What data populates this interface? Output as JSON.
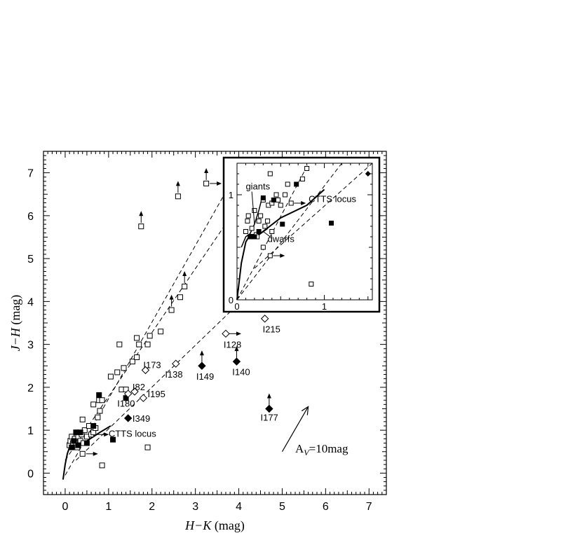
{
  "chart_data": {
    "type": "scatter",
    "xlabel": {
      "italic": "H−K",
      "rest": " (mag)"
    },
    "ylabel": {
      "italic": "J−H",
      "rest": "  (mag)"
    },
    "xlim": [
      -0.5,
      7.4
    ],
    "ylim": [
      -0.5,
      7.5
    ],
    "xticks": [
      "0",
      "1",
      "2",
      "3",
      "4",
      "5",
      "6",
      "7"
    ],
    "yticks": [
      "0",
      "1",
      "2",
      "3",
      "4",
      "5",
      "6",
      "7"
    ],
    "grid": false,
    "open_squares": [
      [
        0.1,
        0.65
      ],
      [
        0.12,
        0.75
      ],
      [
        0.15,
        0.85
      ],
      [
        0.18,
        0.7
      ],
      [
        0.22,
        0.8
      ],
      [
        0.25,
        0.65
      ],
      [
        0.28,
        0.6
      ],
      [
        0.3,
        0.85
      ],
      [
        0.35,
        0.75
      ],
      [
        0.38,
        0.9
      ],
      [
        0.4,
        0.45
      ],
      [
        0.42,
        0.7
      ],
      [
        0.45,
        1.0
      ],
      [
        0.5,
        0.85
      ],
      [
        0.55,
        1.1
      ],
      [
        0.6,
        0.9
      ],
      [
        0.65,
        0.95
      ],
      [
        0.7,
        1.05
      ],
      [
        0.75,
        1.3
      ],
      [
        0.8,
        1.45
      ],
      [
        0.78,
        1.7
      ],
      [
        0.85,
        1.7
      ],
      [
        0.4,
        1.25
      ],
      [
        0.65,
        1.6
      ],
      [
        1.05,
        2.25
      ],
      [
        1.2,
        2.35
      ],
      [
        1.3,
        1.95
      ],
      [
        1.35,
        2.45
      ],
      [
        1.4,
        1.95
      ],
      [
        1.55,
        2.6
      ],
      [
        1.65,
        2.7
      ],
      [
        1.7,
        3.0
      ],
      [
        1.65,
        3.15
      ],
      [
        1.25,
        3.0
      ],
      [
        1.9,
        3.0
      ],
      [
        1.95,
        3.2
      ],
      [
        2.2,
        3.3
      ],
      [
        2.45,
        3.8
      ],
      [
        2.65,
        4.1
      ],
      [
        2.75,
        4.35
      ],
      [
        1.75,
        5.75
      ],
      [
        2.6,
        6.45
      ],
      [
        3.25,
        6.75
      ],
      [
        1.9,
        0.6
      ],
      [
        0.85,
        0.18
      ]
    ],
    "filled_squares": [
      [
        0.15,
        0.6
      ],
      [
        0.2,
        0.75
      ],
      [
        0.25,
        0.95
      ],
      [
        0.3,
        0.65
      ],
      [
        0.35,
        0.95
      ],
      [
        0.5,
        0.7
      ],
      [
        0.65,
        1.1
      ],
      [
        0.78,
        1.82
      ],
      [
        1.4,
        1.75
      ],
      [
        1.1,
        0.78
      ]
    ],
    "open_diamonds": [
      [
        1.85,
        2.4
      ],
      [
        2.55,
        2.55
      ],
      [
        1.45,
        1.85
      ],
      [
        1.6,
        1.9
      ],
      [
        1.8,
        1.75
      ],
      [
        3.7,
        3.25
      ],
      [
        4.6,
        3.6
      ]
    ],
    "filled_diamonds": [
      [
        1.45,
        1.28
      ],
      [
        3.15,
        2.5
      ],
      [
        3.95,
        2.6
      ],
      [
        4.7,
        1.5
      ]
    ],
    "upward_arrows": [
      [
        1.75,
        5.75
      ],
      [
        2.6,
        6.45
      ],
      [
        3.25,
        6.75
      ],
      [
        2.45,
        3.8
      ],
      [
        2.75,
        4.35
      ],
      [
        3.15,
        2.5
      ],
      [
        3.95,
        2.6
      ],
      [
        4.7,
        1.5
      ]
    ],
    "right_arrows": [
      [
        3.25,
        6.75
      ],
      [
        0.4,
        0.45
      ],
      [
        0.65,
        0.9
      ],
      [
        3.7,
        3.25
      ]
    ],
    "reddening_lines": [
      [
        [
          0.0,
          -0.05
        ],
        [
          3.95,
          7.0
        ]
      ],
      [
        [
          0.0,
          0.3
        ],
        [
          4.5,
          7.0
        ]
      ],
      [
        [
          0.25,
          0.3
        ],
        [
          6.1,
          6.0
        ]
      ]
    ],
    "dwarf_locus": [
      [
        -0.05,
        -0.15
      ],
      [
        0.0,
        0.2
      ],
      [
        0.05,
        0.45
      ],
      [
        0.1,
        0.6
      ],
      [
        0.15,
        0.68
      ],
      [
        0.25,
        0.7
      ]
    ],
    "ctts_locus": [
      [
        0.25,
        0.62
      ],
      [
        0.5,
        0.75
      ],
      [
        0.8,
        0.95
      ],
      [
        1.05,
        1.1
      ]
    ],
    "labels": [
      {
        "text": "I173",
        "x": 1.8,
        "y": 2.45
      },
      {
        "text": "I138",
        "x": 2.3,
        "y": 2.23
      },
      {
        "text": "I149",
        "x": 3.02,
        "y": 2.18
      },
      {
        "text": "I140",
        "x": 3.85,
        "y": 2.28
      },
      {
        "text": "I128",
        "x": 3.65,
        "y": 2.92
      },
      {
        "text": "I215",
        "x": 4.55,
        "y": 3.28
      },
      {
        "text": "I82",
        "x": 1.55,
        "y": 1.93
      },
      {
        "text": "I195",
        "x": 1.9,
        "y": 1.77
      },
      {
        "text": "I180",
        "x": 1.2,
        "y": 1.55
      },
      {
        "text": "I349",
        "x": 1.55,
        "y": 1.2
      },
      {
        "text": "I177",
        "x": 4.5,
        "y": 1.22
      },
      {
        "text": "CTTS locus",
        "x": 1.0,
        "y": 0.85
      }
    ],
    "av_label": {
      "text": "A",
      "sub": "V",
      "rest": "=10mag"
    },
    "inset": {
      "xlim": [
        0,
        1.55
      ],
      "ylim": [
        0,
        1.3
      ],
      "xticks": [
        "0",
        "1"
      ],
      "yticks": [
        "0",
        "1"
      ],
      "open_squares": [
        [
          0.1,
          0.65
        ],
        [
          0.12,
          0.75
        ],
        [
          0.13,
          0.8
        ],
        [
          0.17,
          0.68
        ],
        [
          0.2,
          0.85
        ],
        [
          0.22,
          0.62
        ],
        [
          0.23,
          0.6
        ],
        [
          0.25,
          0.75
        ],
        [
          0.27,
          0.8
        ],
        [
          0.3,
          0.95
        ],
        [
          0.32,
          0.7
        ],
        [
          0.35,
          0.75
        ],
        [
          0.36,
          0.9
        ],
        [
          0.4,
          0.92
        ],
        [
          0.4,
          0.65
        ],
        [
          0.45,
          1.0
        ],
        [
          0.47,
          0.95
        ],
        [
          0.5,
          0.9
        ],
        [
          0.55,
          1.0
        ],
        [
          0.58,
          1.1
        ],
        [
          0.62,
          0.92
        ],
        [
          0.75,
          1.15
        ],
        [
          0.8,
          1.25
        ],
        [
          0.38,
          1.2
        ],
        [
          0.3,
          0.5
        ],
        [
          0.38,
          0.42
        ],
        [
          0.85,
          0.15
        ]
      ],
      "filled_squares": [
        [
          0.15,
          0.6
        ],
        [
          0.2,
          0.6
        ],
        [
          0.25,
          0.65
        ],
        [
          0.3,
          0.97
        ],
        [
          0.42,
          0.95
        ],
        [
          0.52,
          0.72
        ],
        [
          0.68,
          1.1
        ],
        [
          1.08,
          0.73
        ]
      ],
      "filled_diamonds": [
        [
          1.5,
          1.2
        ]
      ],
      "right_arrows": [
        [
          0.38,
          0.42
        ],
        [
          0.62,
          0.92
        ]
      ],
      "reddening_lines": [
        [
          [
            0.0,
            0.0
          ],
          [
            0.82,
            1.3
          ]
        ],
        [
          [
            0.0,
            0.0
          ],
          [
            1.2,
            1.3
          ]
        ],
        [
          [
            0.2,
            0.3
          ],
          [
            1.55,
            1.3
          ]
        ]
      ],
      "dwarf_locus": [
        [
          0.0,
          0.0
        ],
        [
          0.05,
          0.35
        ],
        [
          0.1,
          0.55
        ],
        [
          0.15,
          0.62
        ],
        [
          0.25,
          0.62
        ],
        [
          0.35,
          0.68
        ]
      ],
      "giant_locus": [
        [
          0.05,
          0.5
        ],
        [
          0.1,
          0.6
        ],
        [
          0.15,
          0.63
        ],
        [
          0.2,
          0.72
        ],
        [
          0.25,
          0.85
        ],
        [
          0.28,
          0.95
        ]
      ],
      "ctts_locus": [
        [
          0.25,
          0.62
        ],
        [
          0.5,
          0.78
        ],
        [
          0.8,
          0.9
        ],
        [
          1.0,
          1.05
        ]
      ],
      "labels": [
        {
          "text": "giants",
          "x": 0.1,
          "y": 1.05
        },
        {
          "text": "CTTS locus",
          "x": 0.82,
          "y": 0.93
        },
        {
          "text": "dwarfs",
          "x": 0.35,
          "y": 0.55
        }
      ]
    }
  }
}
